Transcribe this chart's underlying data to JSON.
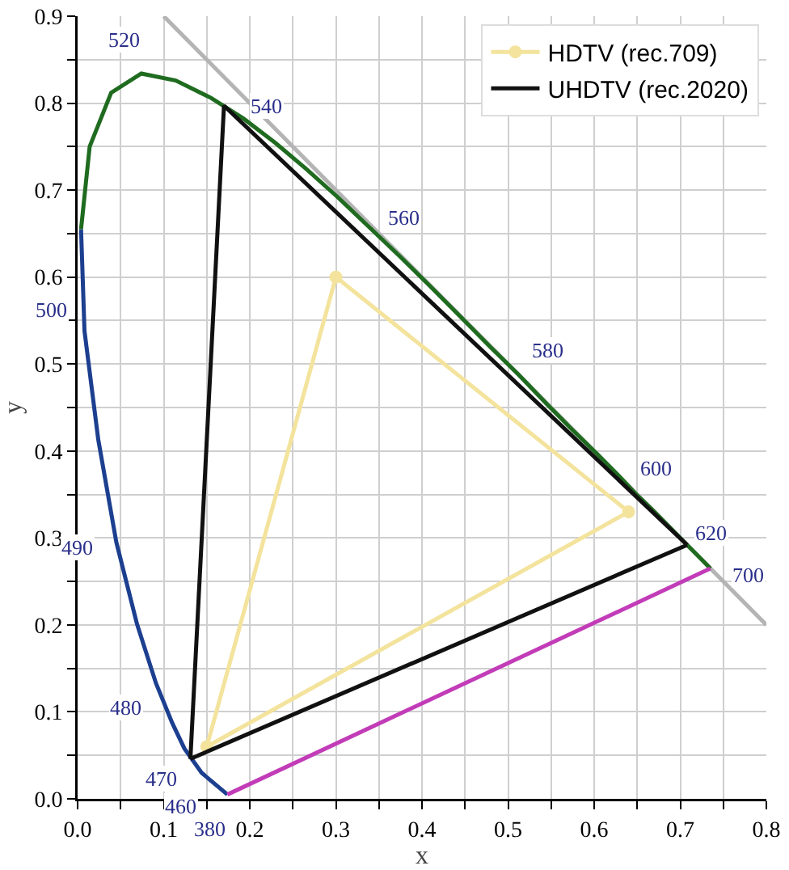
{
  "chart_data": {
    "type": "line",
    "xlabel": "x",
    "ylabel": "y",
    "series": [
      {
        "color": "#b4b4b4",
        "x": [
          0.1,
          0.8
        ],
        "values": [
          0.9,
          0.2
        ]
      },
      {
        "color": "#1c3f8f",
        "x": [
          0.004,
          0.008,
          0.024,
          0.045,
          0.069,
          0.091,
          0.11,
          0.124,
          0.144,
          0.174
        ],
        "values": [
          0.655,
          0.538,
          0.413,
          0.295,
          0.201,
          0.133,
          0.087,
          0.058,
          0.03,
          0.005
        ]
      },
      {
        "color": "#1f6b1f",
        "x": [
          0.004,
          0.014,
          0.039,
          0.074,
          0.114,
          0.155,
          0.193,
          0.23,
          0.266,
          0.302,
          0.337,
          0.373,
          0.409,
          0.444,
          0.479,
          0.513,
          0.545,
          0.575,
          0.603,
          0.627,
          0.648,
          0.666,
          0.68,
          0.692,
          0.708,
          0.719,
          0.735
        ],
        "values": [
          0.655,
          0.75,
          0.812,
          0.834,
          0.826,
          0.806,
          0.782,
          0.754,
          0.724,
          0.692,
          0.659,
          0.625,
          0.59,
          0.555,
          0.52,
          0.487,
          0.454,
          0.424,
          0.397,
          0.373,
          0.351,
          0.334,
          0.32,
          0.308,
          0.292,
          0.281,
          0.265
        ]
      },
      {
        "color": "#c23cb8",
        "x": [
          0.174,
          0.735
        ],
        "values": [
          0.005,
          0.265
        ]
      },
      {
        "name": "HDTV (rec.709)",
        "color": "#f3e39c",
        "marker": "circle",
        "x": [
          0.15,
          0.3,
          0.64
        ],
        "values": [
          0.06,
          0.6,
          0.33
        ]
      },
      {
        "color": "#f3e39c",
        "x": [
          0.15,
          0.64
        ],
        "values": [
          0.06,
          0.33
        ]
      },
      {
        "name": "UHDTV (rec.2020)",
        "color": "#111111",
        "x": [
          0.131,
          0.17,
          0.708
        ],
        "values": [
          0.046,
          0.797,
          0.292
        ]
      },
      {
        "color": "#111111",
        "x": [
          0.131,
          0.708
        ],
        "values": [
          0.046,
          0.292
        ]
      }
    ],
    "annotations": [
      {
        "text": "520",
        "x": 0.074,
        "y": 0.834
      },
      {
        "text": "540",
        "x": 0.23,
        "y": 0.754
      },
      {
        "text": "560",
        "x": 0.373,
        "y": 0.625
      },
      {
        "text": "580",
        "x": 0.513,
        "y": 0.487
      },
      {
        "text": "600",
        "x": 0.627,
        "y": 0.373
      },
      {
        "text": "620",
        "x": 0.692,
        "y": 0.308
      },
      {
        "text": "700",
        "x": 0.735,
        "y": 0.265
      },
      {
        "text": "500",
        "x": 0.008,
        "y": 0.538
      },
      {
        "text": "490",
        "x": 0.045,
        "y": 0.295
      },
      {
        "text": "480",
        "x": 0.091,
        "y": 0.133
      },
      {
        "text": "470",
        "x": 0.124,
        "y": 0.058
      },
      {
        "text": "460",
        "x": 0.144,
        "y": 0.03
      },
      {
        "text": "380",
        "x": 0.174,
        "y": 0.005
      }
    ],
    "xlim": [
      0,
      0.8
    ],
    "xticks": [
      {
        "value": 0,
        "label": "0.0"
      },
      {
        "value": 0.05,
        "label": null
      },
      {
        "value": 0.1,
        "label": "0.1"
      },
      {
        "value": 0.15,
        "label": null
      },
      {
        "value": 0.2,
        "label": "0.2"
      },
      {
        "value": 0.25,
        "label": null
      },
      {
        "value": 0.3,
        "label": "0.3"
      },
      {
        "value": 0.35,
        "label": null
      },
      {
        "value": 0.4,
        "label": "0.4"
      },
      {
        "value": 0.45,
        "label": null
      },
      {
        "value": 0.5,
        "label": "0.5"
      },
      {
        "value": 0.55,
        "label": null
      },
      {
        "value": 0.6,
        "label": "0.6"
      },
      {
        "value": 0.65,
        "label": null
      },
      {
        "value": 0.7,
        "label": "0.7"
      },
      {
        "value": 0.75,
        "label": null
      },
      {
        "value": 0.8,
        "label": "0.8"
      }
    ],
    "ylim": [
      0,
      0.9
    ],
    "yticks": [
      {
        "value": 0,
        "label": "0.0"
      },
      {
        "value": 0.05,
        "label": null
      },
      {
        "value": 0.1,
        "label": "0.1"
      },
      {
        "value": 0.15,
        "label": null
      },
      {
        "value": 0.2,
        "label": "0.2"
      },
      {
        "value": 0.25,
        "label": null
      },
      {
        "value": 0.3,
        "label": "0.3"
      },
      {
        "value": 0.35,
        "label": null
      },
      {
        "value": 0.4,
        "label": "0.4"
      },
      {
        "value": 0.45,
        "label": null
      },
      {
        "value": 0.5,
        "label": "0.5"
      },
      {
        "value": 0.55,
        "label": null
      },
      {
        "value": 0.6,
        "label": "0.6"
      },
      {
        "value": 0.65,
        "label": null
      },
      {
        "value": 0.7,
        "label": "0.7"
      },
      {
        "value": 0.75,
        "label": null
      },
      {
        "value": 0.8,
        "label": "0.8"
      },
      {
        "value": 0.85,
        "label": null
      },
      {
        "value": 0.9,
        "label": "0.9"
      }
    ],
    "grid": true,
    "legend": "top right",
    "line_style": "solid"
  }
}
